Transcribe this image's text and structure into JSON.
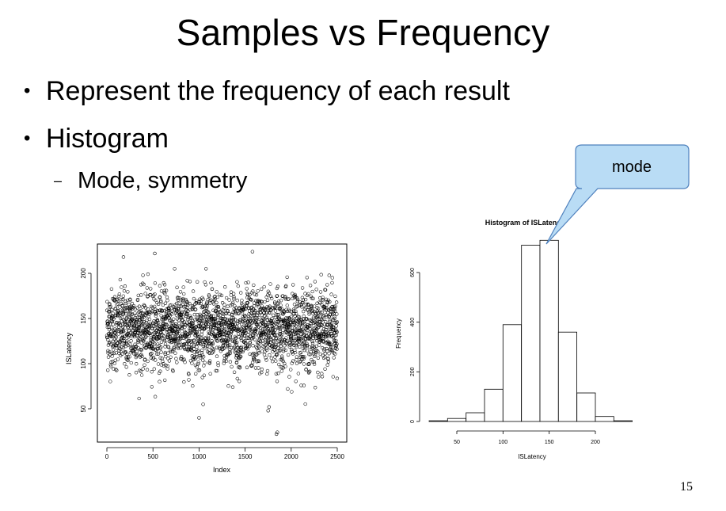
{
  "slide": {
    "title": "Samples vs Frequency",
    "bullets": [
      {
        "text": "Represent the frequency of each result"
      },
      {
        "text": "Histogram"
      }
    ],
    "sub_bullet": "Mode, symmetry",
    "page_number": "15",
    "callout": {
      "label": "mode",
      "fill": "#b9dcf5",
      "stroke": "#4f81bd"
    }
  },
  "chart_data": [
    {
      "type": "scatter",
      "title": "",
      "xlabel": "Index",
      "ylabel": "ISLatency",
      "xlim": [
        0,
        2500
      ],
      "ylim": [
        20,
        225
      ],
      "x_ticks": [
        "0",
        "500",
        "1000",
        "1500",
        "2000",
        "2500"
      ],
      "y_ticks": [
        "50",
        "100",
        "150",
        "200"
      ],
      "n_points": 2500,
      "description": "",
      "outliers": [
        {
          "x": 520,
          "y": 222
        },
        {
          "x": 1580,
          "y": 224
        },
        {
          "x": 1000,
          "y": 40
        },
        {
          "x": 1840,
          "y": 22
        },
        {
          "x": 1850,
          "y": 24
        },
        {
          "x": 1750,
          "y": 48
        },
        {
          "x": 1760,
          "y": 52
        },
        {
          "x": 180,
          "y": 218
        }
      ]
    },
    {
      "type": "bar",
      "subtype": "histogram",
      "title": "Histogram of ISLatency",
      "xlabel": "ISLatency",
      "ylabel": "Frequency",
      "bin_edges": [
        20,
        40,
        60,
        80,
        100,
        120,
        140,
        160,
        180,
        200,
        220,
        240
      ],
      "values": [
        3,
        12,
        35,
        130,
        390,
        710,
        730,
        360,
        115,
        20,
        3
      ],
      "xlim": [
        20,
        240
      ],
      "ylim": [
        0,
        730
      ],
      "x_ticks": [
        "50",
        "100",
        "150",
        "200"
      ],
      "y_ticks": [
        "0",
        "200",
        "400",
        "600"
      ]
    }
  ]
}
